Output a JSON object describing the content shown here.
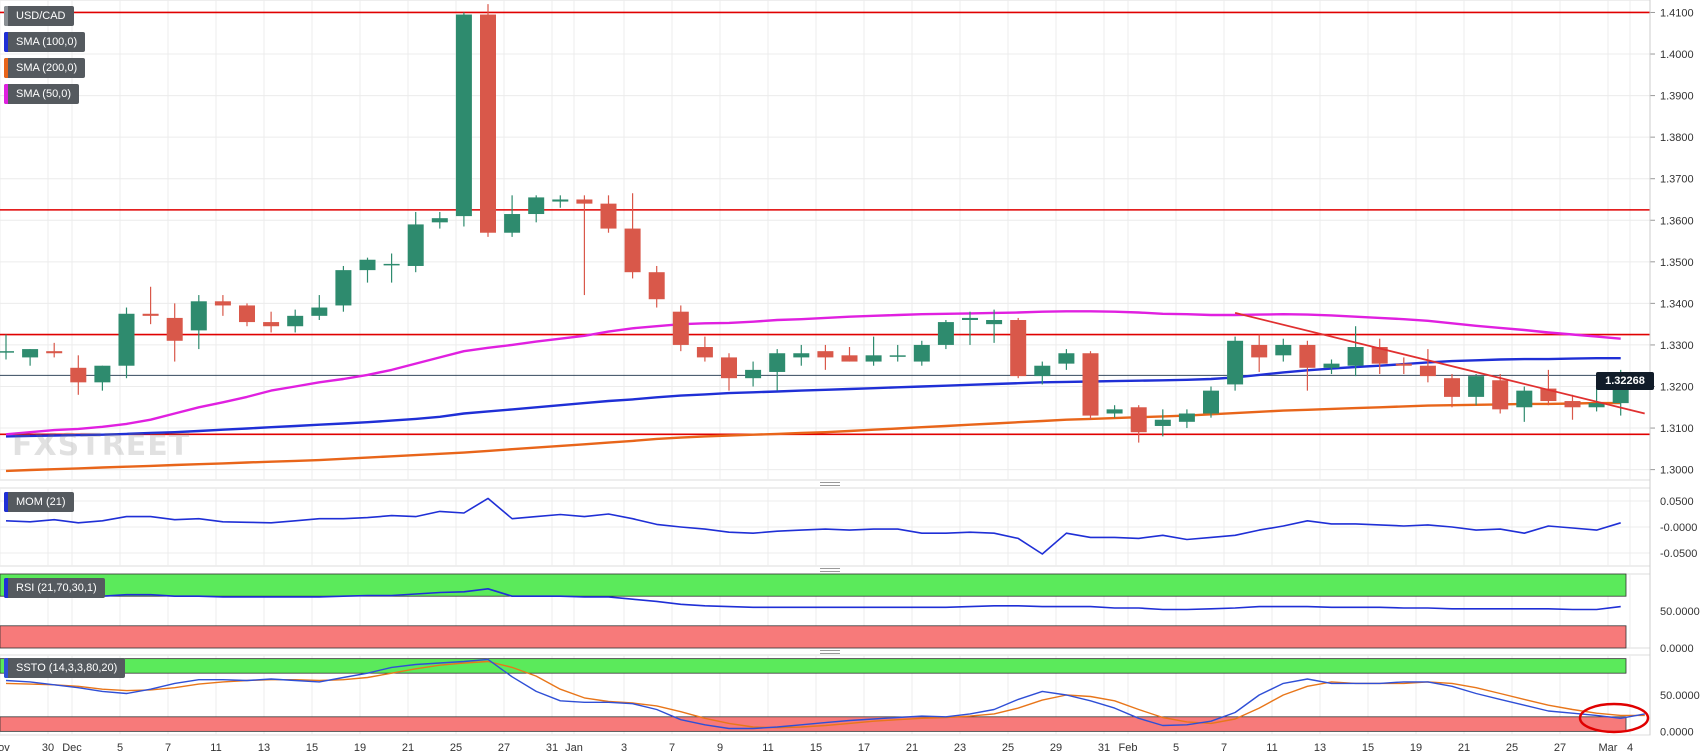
{
  "watermark": "FXSTREET",
  "colors": {
    "up": "#2e8b6e",
    "down": "#d9584a",
    "sma100": "#1f2fd6",
    "sma200": "#e8651a",
    "sma50": "#e020e0",
    "level": "#e00000",
    "trend": "#e03030",
    "mom": "#1f2fd6",
    "rsi": "#1f2fd6",
    "sto_k": "#2f4fd6",
    "sto_d": "#e8761a",
    "zone_green": "#5bea5b",
    "zone_red": "#f77a7a",
    "grid": "#ececec",
    "axis_text": "#333333"
  },
  "legend": {
    "symbol": "USD/CAD",
    "sma100": "SMA (100,0)",
    "sma200": "SMA (200,0)",
    "sma50": "SMA (50,0)",
    "mom": "MOM (21)",
    "rsi": "RSI (21,70,30,1)",
    "sto": "SSTO (14,3,3,80,20)"
  },
  "last_price_label": "1.32268",
  "chart_data": [
    {
      "type": "candlestick",
      "title": "USD/CAD",
      "ylim": [
        1.2975,
        1.413
      ],
      "y_ticks": [
        "1.4100",
        "1.4000",
        "1.3900",
        "1.3800",
        "1.3700",
        "1.3600",
        "1.3500",
        "1.3400",
        "1.3300",
        "1.3200",
        "1.3100",
        "1.3000"
      ],
      "x_ticks": [
        "Nov",
        "30",
        "Dec",
        "5",
        "7",
        "11",
        "13",
        "15",
        "19",
        "21",
        "25",
        "27",
        "31",
        "Jan",
        "3",
        "7",
        "9",
        "11",
        "15",
        "17",
        "21",
        "23",
        "25",
        "29",
        "31",
        "Feb",
        "5",
        "7",
        "11",
        "13",
        "15",
        "19",
        "21",
        "25",
        "27",
        "Mar",
        "4"
      ],
      "grid": true,
      "horizontal_levels": [
        1.41,
        1.3625,
        1.3325,
        1.3085
      ],
      "last_price": 1.32268,
      "trendline": [
        [
          1.3377
        ],
        [
          1.3135
        ]
      ],
      "candles": [
        {
          "o": 1.3285,
          "h": 1.3325,
          "l": 1.3265,
          "c": 1.3285
        },
        {
          "o": 1.327,
          "h": 1.329,
          "l": 1.325,
          "c": 1.329
        },
        {
          "o": 1.3285,
          "h": 1.3305,
          "l": 1.327,
          "c": 1.328
        },
        {
          "o": 1.3245,
          "h": 1.3275,
          "l": 1.318,
          "c": 1.321
        },
        {
          "o": 1.321,
          "h": 1.325,
          "l": 1.319,
          "c": 1.325
        },
        {
          "o": 1.325,
          "h": 1.339,
          "l": 1.322,
          "c": 1.3375
        },
        {
          "o": 1.3375,
          "h": 1.344,
          "l": 1.335,
          "c": 1.337
        },
        {
          "o": 1.3365,
          "h": 1.34,
          "l": 1.326,
          "c": 1.331
        },
        {
          "o": 1.3335,
          "h": 1.342,
          "l": 1.329,
          "c": 1.3405
        },
        {
          "o": 1.3405,
          "h": 1.342,
          "l": 1.337,
          "c": 1.3395
        },
        {
          "o": 1.3395,
          "h": 1.34,
          "l": 1.3345,
          "c": 1.3355
        },
        {
          "o": 1.3355,
          "h": 1.338,
          "l": 1.333,
          "c": 1.3345
        },
        {
          "o": 1.3345,
          "h": 1.3385,
          "l": 1.333,
          "c": 1.337
        },
        {
          "o": 1.337,
          "h": 1.342,
          "l": 1.336,
          "c": 1.339
        },
        {
          "o": 1.3395,
          "h": 1.349,
          "l": 1.338,
          "c": 1.348
        },
        {
          "o": 1.348,
          "h": 1.351,
          "l": 1.345,
          "c": 1.3505
        },
        {
          "o": 1.3495,
          "h": 1.352,
          "l": 1.345,
          "c": 1.3495
        },
        {
          "o": 1.349,
          "h": 1.362,
          "l": 1.3475,
          "c": 1.359
        },
        {
          "o": 1.3595,
          "h": 1.362,
          "l": 1.358,
          "c": 1.3605
        },
        {
          "o": 1.361,
          "h": 1.41,
          "l": 1.3585,
          "c": 1.4095
        },
        {
          "o": 1.4095,
          "h": 1.412,
          "l": 1.356,
          "c": 1.357
        },
        {
          "o": 1.357,
          "h": 1.366,
          "l": 1.356,
          "c": 1.3615
        },
        {
          "o": 1.3615,
          "h": 1.366,
          "l": 1.3595,
          "c": 1.3655
        },
        {
          "o": 1.3645,
          "h": 1.366,
          "l": 1.363,
          "c": 1.365
        },
        {
          "o": 1.365,
          "h": 1.366,
          "l": 1.342,
          "c": 1.364
        },
        {
          "o": 1.364,
          "h": 1.366,
          "l": 1.357,
          "c": 1.358
        },
        {
          "o": 1.358,
          "h": 1.3665,
          "l": 1.346,
          "c": 1.3475
        },
        {
          "o": 1.3475,
          "h": 1.349,
          "l": 1.339,
          "c": 1.341
        },
        {
          "o": 1.338,
          "h": 1.3395,
          "l": 1.3285,
          "c": 1.33
        },
        {
          "o": 1.3295,
          "h": 1.332,
          "l": 1.326,
          "c": 1.327
        },
        {
          "o": 1.327,
          "h": 1.328,
          "l": 1.319,
          "c": 1.322
        },
        {
          "o": 1.322,
          "h": 1.326,
          "l": 1.32,
          "c": 1.324
        },
        {
          "o": 1.3235,
          "h": 1.329,
          "l": 1.319,
          "c": 1.328
        },
        {
          "o": 1.327,
          "h": 1.33,
          "l": 1.325,
          "c": 1.328
        },
        {
          "o": 1.3285,
          "h": 1.33,
          "l": 1.324,
          "c": 1.327
        },
        {
          "o": 1.3275,
          "h": 1.3295,
          "l": 1.326,
          "c": 1.326
        },
        {
          "o": 1.326,
          "h": 1.332,
          "l": 1.325,
          "c": 1.3275
        },
        {
          "o": 1.3275,
          "h": 1.33,
          "l": 1.326,
          "c": 1.3275
        },
        {
          "o": 1.326,
          "h": 1.331,
          "l": 1.325,
          "c": 1.33
        },
        {
          "o": 1.33,
          "h": 1.336,
          "l": 1.329,
          "c": 1.3355
        },
        {
          "o": 1.336,
          "h": 1.338,
          "l": 1.33,
          "c": 1.3365
        },
        {
          "o": 1.335,
          "h": 1.3385,
          "l": 1.3305,
          "c": 1.336
        },
        {
          "o": 1.336,
          "h": 1.3365,
          "l": 1.322,
          "c": 1.3225
        },
        {
          "o": 1.3225,
          "h": 1.326,
          "l": 1.3205,
          "c": 1.325
        },
        {
          "o": 1.3255,
          "h": 1.329,
          "l": 1.324,
          "c": 1.328
        },
        {
          "o": 1.328,
          "h": 1.3285,
          "l": 1.312,
          "c": 1.313
        },
        {
          "o": 1.3135,
          "h": 1.3155,
          "l": 1.3125,
          "c": 1.3145
        },
        {
          "o": 1.315,
          "h": 1.3155,
          "l": 1.3065,
          "c": 1.309
        },
        {
          "o": 1.3105,
          "h": 1.3145,
          "l": 1.308,
          "c": 1.312
        },
        {
          "o": 1.3115,
          "h": 1.3145,
          "l": 1.31,
          "c": 1.3135
        },
        {
          "o": 1.3135,
          "h": 1.32,
          "l": 1.3125,
          "c": 1.319
        },
        {
          "o": 1.3205,
          "h": 1.332,
          "l": 1.319,
          "c": 1.331
        },
        {
          "o": 1.33,
          "h": 1.3325,
          "l": 1.3235,
          "c": 1.327
        },
        {
          "o": 1.3275,
          "h": 1.3315,
          "l": 1.326,
          "c": 1.33
        },
        {
          "o": 1.33,
          "h": 1.331,
          "l": 1.319,
          "c": 1.3245
        },
        {
          "o": 1.3245,
          "h": 1.3265,
          "l": 1.323,
          "c": 1.3255
        },
        {
          "o": 1.325,
          "h": 1.3345,
          "l": 1.3225,
          "c": 1.3295
        },
        {
          "o": 1.3295,
          "h": 1.3315,
          "l": 1.323,
          "c": 1.3255
        },
        {
          "o": 1.3255,
          "h": 1.327,
          "l": 1.323,
          "c": 1.325
        },
        {
          "o": 1.325,
          "h": 1.329,
          "l": 1.321,
          "c": 1.3225
        },
        {
          "o": 1.322,
          "h": 1.323,
          "l": 1.315,
          "c": 1.3175
        },
        {
          "o": 1.3175,
          "h": 1.323,
          "l": 1.3155,
          "c": 1.3225
        },
        {
          "o": 1.3215,
          "h": 1.323,
          "l": 1.3135,
          "c": 1.3145
        },
        {
          "o": 1.315,
          "h": 1.32,
          "l": 1.3115,
          "c": 1.319
        },
        {
          "o": 1.3195,
          "h": 1.324,
          "l": 1.3155,
          "c": 1.3165
        },
        {
          "o": 1.3165,
          "h": 1.318,
          "l": 1.312,
          "c": 1.315
        },
        {
          "o": 1.315,
          "h": 1.32,
          "l": 1.314,
          "c": 1.316
        },
        {
          "o": 1.316,
          "h": 1.324,
          "l": 1.313,
          "c": 1.32268
        }
      ],
      "sma50": [
        1.3085,
        1.309,
        1.3095,
        1.3098,
        1.3103,
        1.311,
        1.312,
        1.3135,
        1.315,
        1.3162,
        1.3175,
        1.319,
        1.32,
        1.321,
        1.3218,
        1.3228,
        1.324,
        1.3255,
        1.327,
        1.3285,
        1.3293,
        1.33,
        1.3308,
        1.3315,
        1.3322,
        1.3332,
        1.334,
        1.3345,
        1.335,
        1.3352,
        1.3353,
        1.3356,
        1.336,
        1.3362,
        1.3365,
        1.3368,
        1.337,
        1.3372,
        1.3374,
        1.3375,
        1.3376,
        1.3377,
        1.3378,
        1.338,
        1.3381,
        1.3381,
        1.338,
        1.3378,
        1.3375,
        1.3374,
        1.3372,
        1.3372,
        1.3373,
        1.3374,
        1.3373,
        1.3371,
        1.3368,
        1.3365,
        1.3362,
        1.3358,
        1.3352,
        1.3346,
        1.3341,
        1.3336,
        1.333,
        1.3325,
        1.332,
        1.3315
      ],
      "sma100": [
        1.308,
        1.3081,
        1.3082,
        1.3083,
        1.3084,
        1.3086,
        1.3088,
        1.309,
        1.3093,
        1.3096,
        1.3099,
        1.3102,
        1.3105,
        1.3108,
        1.3111,
        1.3114,
        1.3118,
        1.3122,
        1.3127,
        1.3135,
        1.314,
        1.3145,
        1.315,
        1.3155,
        1.316,
        1.3165,
        1.3169,
        1.3174,
        1.3178,
        1.3181,
        1.3184,
        1.3186,
        1.3188,
        1.319,
        1.3192,
        1.3194,
        1.3196,
        1.3198,
        1.32,
        1.3202,
        1.3204,
        1.3206,
        1.3208,
        1.321,
        1.3211,
        1.3212,
        1.3213,
        1.3214,
        1.3215,
        1.3216,
        1.3218,
        1.3222,
        1.3228,
        1.3234,
        1.3239,
        1.3243,
        1.3247,
        1.325,
        1.3254,
        1.3258,
        1.3261,
        1.3263,
        1.3265,
        1.3266,
        1.3266,
        1.3267,
        1.3268,
        1.3268
      ],
      "sma200": [
        1.2997,
        1.2999,
        1.3001,
        1.3003,
        1.3005,
        1.3007,
        1.3009,
        1.3011,
        1.3013,
        1.3015,
        1.3017,
        1.3019,
        1.3021,
        1.3023,
        1.3026,
        1.3029,
        1.3032,
        1.3035,
        1.3038,
        1.3041,
        1.3045,
        1.3049,
        1.3053,
        1.3057,
        1.3061,
        1.3065,
        1.3069,
        1.3074,
        1.3077,
        1.308,
        1.3082,
        1.3084,
        1.3086,
        1.3088,
        1.309,
        1.3093,
        1.3096,
        1.3099,
        1.3102,
        1.3105,
        1.3108,
        1.3111,
        1.3114,
        1.3117,
        1.312,
        1.3122,
        1.3124,
        1.3126,
        1.3128,
        1.313,
        1.3133,
        1.3136,
        1.3139,
        1.3142,
        1.3144,
        1.3146,
        1.3148,
        1.315,
        1.3152,
        1.3154,
        1.3155,
        1.3156,
        1.3157,
        1.3158,
        1.3158,
        1.3159,
        1.316,
        1.316
      ]
    },
    {
      "type": "line",
      "title": "MOM (21)",
      "ylim": [
        -0.075,
        0.075
      ],
      "y_ticks": [
        "0.0500",
        "-0.0000",
        "-0.0500"
      ],
      "values": [
        0.012,
        0.01,
        0.014,
        0.008,
        0.012,
        0.02,
        0.02,
        0.014,
        0.016,
        0.01,
        0.009,
        0.008,
        0.012,
        0.016,
        0.016,
        0.018,
        0.022,
        0.02,
        0.03,
        0.027,
        0.055,
        0.016,
        0.02,
        0.024,
        0.02,
        0.025,
        0.016,
        0.005,
        0.0,
        -0.004,
        -0.01,
        -0.012,
        -0.008,
        -0.006,
        -0.004,
        -0.006,
        -0.004,
        -0.004,
        -0.012,
        -0.012,
        -0.01,
        -0.012,
        -0.022,
        -0.052,
        -0.012,
        -0.02,
        -0.02,
        -0.022,
        -0.016,
        -0.024,
        -0.02,
        -0.016,
        -0.006,
        0.002,
        0.012,
        0.006,
        0.006,
        0.004,
        0.002,
        0.004,
        0.0,
        -0.006,
        -0.004,
        -0.012,
        0.002,
        -0.002,
        -0.006,
        0.008
      ]
    },
    {
      "type": "line",
      "title": "RSI (21,70,30,1)",
      "ylim": [
        0,
        100
      ],
      "y_ticks": [
        "50.0000",
        "0.0000"
      ],
      "bands": {
        "overbought": 70,
        "oversold": 30
      },
      "values": [
        75,
        73,
        74,
        72,
        70,
        72,
        72,
        70,
        70,
        69,
        69,
        69,
        69,
        69,
        70,
        71,
        71,
        73,
        75,
        76,
        80,
        70,
        70,
        70,
        69,
        69,
        66,
        63,
        59,
        57,
        56,
        55,
        55,
        55,
        55,
        55,
        55,
        55,
        55,
        55,
        56,
        57,
        57,
        56,
        56,
        56,
        54,
        54,
        52,
        52,
        53,
        54,
        56,
        56,
        56,
        55,
        55,
        55,
        54,
        54,
        53,
        53,
        53,
        53,
        53,
        52,
        52,
        56
      ]
    },
    {
      "type": "line",
      "title": "SSTO (14,3,3,80,20)",
      "ylim": [
        -5,
        105
      ],
      "y_ticks": [
        "50.0000",
        "0.0000"
      ],
      "bands": {
        "overbought": 80,
        "oversold": 20
      },
      "series": [
        {
          "values": [
            70,
            68,
            64,
            60,
            55,
            52,
            58,
            66,
            71,
            71,
            70,
            72,
            70,
            68,
            74,
            80,
            88,
            92,
            94,
            96,
            99,
            75,
            55,
            42,
            40,
            40,
            38,
            30,
            16,
            9,
            4,
            4,
            6,
            9,
            12,
            15,
            17,
            19,
            21,
            20,
            24,
            30,
            44,
            55,
            50,
            42,
            32,
            18,
            8,
            9,
            14,
            26,
            50,
            66,
            72,
            66,
            66,
            66,
            68,
            68,
            62,
            52,
            44,
            36,
            28,
            25,
            22,
            18,
            24
          ]
        },
        {
          "series_role": "signal",
          "values": [
            66,
            65,
            64,
            62,
            58,
            56,
            57,
            60,
            65,
            68,
            70,
            71,
            71,
            70,
            71,
            74,
            80,
            86,
            91,
            94,
            96,
            88,
            76,
            58,
            46,
            41,
            39,
            35,
            27,
            18,
            11,
            6,
            5,
            6,
            8,
            11,
            14,
            16,
            18,
            19,
            21,
            24,
            32,
            43,
            50,
            48,
            42,
            30,
            19,
            13,
            11,
            17,
            32,
            50,
            62,
            68,
            66,
            66,
            66,
            68,
            66,
            60,
            52,
            44,
            36,
            30,
            25,
            22,
            22
          ]
        }
      ]
    }
  ]
}
